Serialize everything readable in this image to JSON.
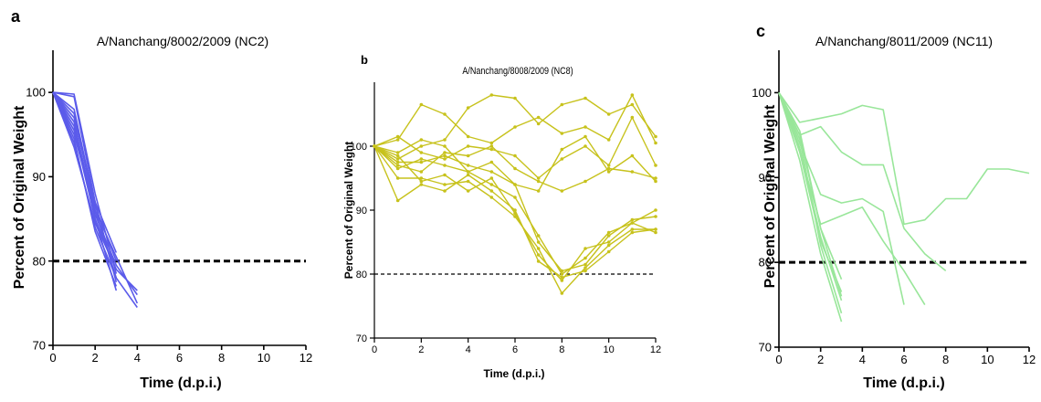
{
  "chart_data": [
    {
      "panel_label": "a",
      "type": "line",
      "title": "A/Nanchang/8002/2009 (NC2)",
      "xlabel": "Time (d.p.i.)",
      "ylabel": "Percent of Original Weight",
      "xlim": [
        0,
        12
      ],
      "ylim": [
        70,
        105
      ],
      "xticks": [
        0,
        2,
        4,
        6,
        8,
        10,
        12
      ],
      "yticks": [
        70,
        80,
        90,
        100
      ],
      "threshold": 80,
      "color": "#5b5bea",
      "series": [
        {
          "points": [
            [
              0,
              100
            ],
            [
              1,
              99.8
            ],
            [
              2,
              88
            ],
            [
              3,
              78.5
            ]
          ]
        },
        {
          "points": [
            [
              0,
              100
            ],
            [
              1,
              99.5
            ],
            [
              2,
              87
            ],
            [
              3,
              77.5
            ]
          ]
        },
        {
          "points": [
            [
              0,
              100
            ],
            [
              1,
              96
            ],
            [
              2,
              85
            ],
            [
              3,
              79
            ],
            [
              4,
              76.5
            ]
          ]
        },
        {
          "points": [
            [
              0,
              100
            ],
            [
              1,
              95
            ],
            [
              2,
              86
            ],
            [
              3,
              80.5
            ],
            [
              4,
              75
            ]
          ]
        },
        {
          "points": [
            [
              0,
              100
            ],
            [
              1,
              97
            ],
            [
              2,
              87
            ],
            [
              3,
              81
            ]
          ]
        },
        {
          "points": [
            [
              0,
              100
            ],
            [
              1,
              94
            ],
            [
              2,
              84
            ],
            [
              3,
              78
            ],
            [
              4,
              74.5
            ]
          ]
        },
        {
          "points": [
            [
              0,
              100
            ],
            [
              1,
              96.5
            ],
            [
              2,
              85.5
            ],
            [
              3,
              79.5
            ],
            [
              4,
              76
            ]
          ]
        },
        {
          "points": [
            [
              0,
              100
            ],
            [
              1,
              98
            ],
            [
              2,
              86.5
            ],
            [
              3,
              80
            ]
          ]
        },
        {
          "points": [
            [
              0,
              100
            ],
            [
              1,
              93.5
            ],
            [
              2,
              84.5
            ],
            [
              3,
              79
            ]
          ]
        },
        {
          "points": [
            [
              0,
              100
            ],
            [
              1,
              95.5
            ],
            [
              2,
              85
            ],
            [
              3,
              76.5
            ]
          ]
        },
        {
          "points": [
            [
              0,
              100
            ],
            [
              1,
              97.5
            ],
            [
              2,
              86
            ],
            [
              3,
              78
            ]
          ]
        },
        {
          "points": [
            [
              0,
              100
            ],
            [
              1,
              94.5
            ],
            [
              2,
              83.5
            ],
            [
              3,
              77
            ]
          ]
        }
      ]
    },
    {
      "panel_label": "b",
      "type": "line",
      "title": "A/Nanchang/8008/2009 (NC8)",
      "xlabel": "Time (d.p.i.)",
      "ylabel": "Percent of Original Weight",
      "xlim": [
        0,
        12
      ],
      "ylim": [
        70,
        110
      ],
      "xticks": [
        0,
        2,
        4,
        6,
        8,
        10,
        12
      ],
      "yticks": [
        70,
        80,
        90,
        100
      ],
      "threshold": 80,
      "color": "#c7c21c",
      "series": [
        {
          "points": [
            [
              0,
              100
            ],
            [
              1,
              101
            ],
            [
              2,
              106.5
            ],
            [
              3,
              105
            ],
            [
              4,
              101.5
            ],
            [
              5,
              100.5
            ],
            [
              6,
              103
            ],
            [
              7,
              104.5
            ],
            [
              8,
              102
            ],
            [
              9,
              103
            ],
            [
              10,
              101
            ],
            [
              11,
              108
            ],
            [
              12,
              100.5
            ]
          ]
        },
        {
          "points": [
            [
              0,
              100
            ],
            [
              1,
              98
            ],
            [
              2,
              100
            ],
            [
              3,
              101
            ],
            [
              4,
              106
            ],
            [
              5,
              108
            ],
            [
              6,
              107.5
            ],
            [
              7,
              103.5
            ],
            [
              8,
              106.5
            ],
            [
              9,
              107.5
            ],
            [
              10,
              105
            ],
            [
              11,
              106.5
            ],
            [
              12,
              101.5
            ]
          ]
        },
        {
          "points": [
            [
              0,
              100
            ],
            [
              1,
              101.5
            ],
            [
              2,
              99
            ],
            [
              3,
              98
            ],
            [
              4,
              100
            ],
            [
              5,
              99.5
            ],
            [
              6,
              98.5
            ],
            [
              7,
              95
            ],
            [
              8,
              98
            ],
            [
              9,
              100
            ],
            [
              10,
              97
            ],
            [
              11,
              104.5
            ],
            [
              12,
              97
            ]
          ]
        },
        {
          "points": [
            [
              0,
              100
            ],
            [
              1,
              99
            ],
            [
              2,
              101
            ],
            [
              3,
              100
            ],
            [
              4,
              96
            ],
            [
              5,
              97.5
            ],
            [
              6,
              94
            ],
            [
              7,
              93
            ],
            [
              8,
              99.5
            ],
            [
              9,
              101.5
            ],
            [
              10,
              96
            ],
            [
              11,
              98.5
            ],
            [
              12,
              94.5
            ]
          ]
        },
        {
          "points": [
            [
              0,
              100
            ],
            [
              1,
              97
            ],
            [
              2,
              96
            ],
            [
              3,
              99
            ],
            [
              4,
              98.5
            ],
            [
              5,
              100
            ],
            [
              6,
              96.5
            ],
            [
              7,
              94.5
            ],
            [
              8,
              93
            ],
            [
              9,
              94.5
            ],
            [
              10,
              96.5
            ],
            [
              11,
              96
            ],
            [
              12,
              95
            ]
          ]
        },
        {
          "points": [
            [
              0,
              100
            ],
            [
              1,
              96.5
            ],
            [
              2,
              98
            ],
            [
              3,
              97
            ],
            [
              4,
              96
            ],
            [
              5,
              94
            ],
            [
              6,
              92
            ],
            [
              7,
              86
            ],
            [
              8,
              80
            ],
            [
              9,
              82.5
            ],
            [
              10,
              86.5
            ],
            [
              11,
              88
            ],
            [
              12,
              90
            ]
          ]
        },
        {
          "points": [
            [
              0,
              100
            ],
            [
              1,
              95
            ],
            [
              2,
              95
            ],
            [
              3,
              94
            ],
            [
              4,
              94.5
            ],
            [
              5,
              92
            ],
            [
              6,
              89
            ],
            [
              7,
              84
            ],
            [
              8,
              77
            ],
            [
              9,
              81
            ],
            [
              10,
              84.5
            ],
            [
              11,
              87
            ],
            [
              12,
              87
            ]
          ]
        },
        {
          "points": [
            [
              0,
              100
            ],
            [
              1,
              98.5
            ],
            [
              2,
              94.5
            ],
            [
              3,
              95.5
            ],
            [
              4,
              93
            ],
            [
              5,
              95
            ],
            [
              6,
              89.5
            ],
            [
              7,
              83
            ],
            [
              8,
              79
            ],
            [
              9,
              84
            ],
            [
              10,
              85
            ],
            [
              11,
              88
            ],
            [
              12,
              86.5
            ]
          ]
        },
        {
          "points": [
            [
              0,
              100
            ],
            [
              1,
              91.5
            ],
            [
              2,
              94
            ],
            [
              3,
              93
            ],
            [
              4,
              95.5
            ],
            [
              5,
              93
            ],
            [
              6,
              90
            ],
            [
              7,
              82
            ],
            [
              8,
              79.5
            ],
            [
              9,
              80.5
            ],
            [
              10,
              83.5
            ],
            [
              11,
              86.5
            ],
            [
              12,
              87
            ]
          ]
        },
        {
          "points": [
            [
              0,
              100
            ],
            [
              1,
              97.5
            ],
            [
              2,
              97.5
            ],
            [
              3,
              98.5
            ],
            [
              4,
              97
            ],
            [
              5,
              96
            ],
            [
              6,
              94
            ],
            [
              7,
              85
            ],
            [
              8,
              80.5
            ],
            [
              9,
              81.5
            ],
            [
              10,
              86
            ],
            [
              11,
              88.5
            ],
            [
              12,
              89
            ]
          ]
        }
      ]
    },
    {
      "panel_label": "c",
      "type": "line",
      "title": "A/Nanchang/8011/2009 (NC11)",
      "xlabel": "Time (d.p.i.)",
      "ylabel": "Percent of Original Weight",
      "xlim": [
        0,
        12
      ],
      "ylim": [
        70,
        105
      ],
      "xticks": [
        0,
        2,
        4,
        6,
        8,
        10,
        12
      ],
      "yticks": [
        70,
        80,
        90,
        100
      ],
      "threshold": 80,
      "color": "#99e69a",
      "series": [
        {
          "points": [
            [
              0,
              100
            ],
            [
              1,
              96.5
            ],
            [
              2,
              97
            ],
            [
              3,
              97.5
            ],
            [
              4,
              98.5
            ],
            [
              5,
              98
            ],
            [
              6,
              84.5
            ],
            [
              7,
              85
            ],
            [
              8,
              87.5
            ],
            [
              9,
              87.5
            ],
            [
              10,
              91
            ],
            [
              11,
              91
            ],
            [
              12,
              90.5
            ]
          ]
        },
        {
          "points": [
            [
              0,
              100
            ],
            [
              1,
              95
            ],
            [
              2,
              96
            ],
            [
              3,
              93
            ],
            [
              4,
              91.5
            ],
            [
              5,
              91.5
            ],
            [
              6,
              84
            ],
            [
              7,
              81
            ],
            [
              8,
              79
            ]
          ]
        },
        {
          "points": [
            [
              0,
              100
            ],
            [
              1,
              94
            ],
            [
              2,
              88
            ],
            [
              3,
              87
            ],
            [
              4,
              87.5
            ],
            [
              5,
              86
            ],
            [
              6,
              75
            ]
          ]
        },
        {
          "points": [
            [
              0,
              100
            ],
            [
              1,
              93
            ],
            [
              2,
              84.5
            ],
            [
              3,
              85.5
            ],
            [
              4,
              86.5
            ],
            [
              5,
              82.5
            ],
            [
              6,
              79
            ],
            [
              7,
              75
            ]
          ]
        },
        {
          "points": [
            [
              0,
              100
            ],
            [
              1,
              95
            ],
            [
              2,
              84
            ],
            [
              3,
              76
            ]
          ]
        },
        {
          "points": [
            [
              0,
              100
            ],
            [
              1,
              93.5
            ],
            [
              2,
              83
            ],
            [
              3,
              75.5
            ]
          ]
        },
        {
          "points": [
            [
              0,
              100
            ],
            [
              1,
              94.5
            ],
            [
              2,
              82
            ],
            [
              3,
              74
            ]
          ]
        },
        {
          "points": [
            [
              0,
              100
            ],
            [
              1,
              92
            ],
            [
              2,
              81
            ],
            [
              3,
              73
            ]
          ]
        },
        {
          "points": [
            [
              0,
              100
            ],
            [
              1,
              93
            ],
            [
              2,
              82.5
            ],
            [
              3,
              76.5
            ]
          ]
        },
        {
          "points": [
            [
              0,
              100
            ],
            [
              1,
              95.5
            ],
            [
              2,
              84
            ],
            [
              3,
              78
            ]
          ]
        }
      ]
    }
  ]
}
